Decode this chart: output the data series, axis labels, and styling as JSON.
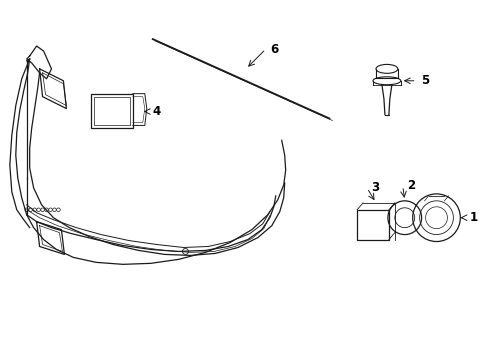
{
  "bg_color": "#ffffff",
  "line_color": "#1a1a1a",
  "label_color": "#000000",
  "fig_width": 4.9,
  "fig_height": 3.6,
  "dpi": 100
}
